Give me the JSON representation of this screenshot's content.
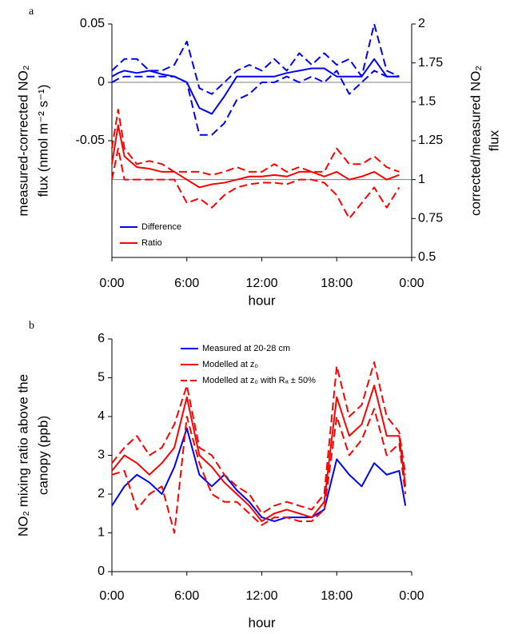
{
  "chart_data": [
    {
      "type": "line",
      "panel_label": "a",
      "xlabel": "hour",
      "ylabel": [
        "measured-corrected NO₂",
        "flux (nmol m⁻² s⁻¹)"
      ],
      "y2label": [
        "corrected/measured NO₂",
        "flux"
      ],
      "x": [
        0,
        0.5,
        1,
        2,
        3,
        4,
        5,
        6,
        7,
        8,
        9,
        10,
        11,
        12,
        13,
        14,
        15,
        16,
        17,
        18,
        19,
        20,
        21,
        22,
        23
      ],
      "xlim": [
        0,
        24
      ],
      "xticks": [
        {
          "value": 0,
          "label": "0:00"
        },
        {
          "value": 6,
          "label": "6:00"
        },
        {
          "value": 12,
          "label": "12:00"
        },
        {
          "value": 18,
          "label": "18:00"
        },
        {
          "value": 24,
          "label": "0:00"
        }
      ],
      "ylim": [
        -0.15,
        0.05
      ],
      "yticks": [
        -0.05,
        0,
        0.05
      ],
      "y2lim": [
        0.5,
        2
      ],
      "y2ticks": [
        0.5,
        0.75,
        1,
        1.25,
        1.5,
        1.75,
        2
      ],
      "hlines": [
        {
          "value": 0
        },
        {
          "value": 1,
          "axis": "y2"
        }
      ],
      "legend": "lower left",
      "series": [
        {
          "name": "Difference",
          "color": "#0000ff",
          "values": [
            0.005,
            0.008,
            0.01,
            0.008,
            0.01,
            0.007,
            0.005,
            0.0,
            -0.022,
            -0.027,
            -0.012,
            0.005,
            0.005,
            0.005,
            0.005,
            0.008,
            0.01,
            0.012,
            0.012,
            0.005,
            0.005,
            0.005,
            0.02,
            0.005,
            0.005
          ]
        },
        {
          "color": "#0000ff",
          "dashed": true,
          "values": [
            0.01,
            0.015,
            0.02,
            0.02,
            0.01,
            0.01,
            0.015,
            0.035,
            -0.005,
            -0.01,
            0,
            0.01,
            0.015,
            0.01,
            0.02,
            0.01,
            0.025,
            0.015,
            0.025,
            0.015,
            0.02,
            0.005,
            0.05,
            0.01,
            0.005
          ]
        },
        {
          "color": "#0000ff",
          "dashed": true,
          "values": [
            0,
            0.003,
            0.005,
            0.005,
            0.005,
            0.005,
            0.005,
            0,
            -0.045,
            -0.045,
            -0.035,
            -0.015,
            -0.01,
            0,
            0,
            0.005,
            0,
            0.005,
            0,
            0.01,
            -0.01,
            0,
            0.01,
            0.005,
            0.005
          ]
        },
        {
          "name": "Ratio",
          "color": "#ff0000",
          "axis": "y2",
          "values": [
            1.1,
            1.35,
            1.15,
            1.08,
            1.07,
            1.05,
            1.05,
            1.0,
            0.95,
            0.97,
            0.98,
            1.0,
            1.02,
            1.02,
            1.03,
            1.02,
            1.05,
            1.05,
            1.02,
            1.05,
            1.0,
            1.02,
            1.05,
            1.0,
            1.03
          ]
        },
        {
          "color": "#ff0000",
          "axis": "y2",
          "dashed": true,
          "values": [
            1.2,
            1.45,
            1.2,
            1.1,
            1.12,
            1.1,
            1.05,
            1.05,
            1.05,
            1.03,
            1.05,
            1.08,
            1.05,
            1.05,
            1.1,
            1.05,
            1.08,
            1.05,
            1.05,
            1.2,
            1.1,
            1.1,
            1.15,
            1.08,
            1.05
          ]
        },
        {
          "color": "#ff0000",
          "axis": "y2",
          "dashed": true,
          "values": [
            1.0,
            1.2,
            1.0,
            1.0,
            1.0,
            1.0,
            1.0,
            0.85,
            0.88,
            0.82,
            0.9,
            0.95,
            0.97,
            0.98,
            0.98,
            0.97,
            1.0,
            1.0,
            0.98,
            0.9,
            0.75,
            0.85,
            0.95,
            0.82,
            0.95
          ]
        }
      ]
    },
    {
      "type": "line",
      "panel_label": "b",
      "xlabel": "hour",
      "ylabel": [
        "NO₂ mixing ratio above the",
        "canopy (ppb)"
      ],
      "x": [
        0,
        1,
        2,
        3,
        4,
        5,
        6,
        7,
        8,
        9,
        10,
        11,
        12,
        13,
        14,
        15,
        16,
        17,
        18,
        19,
        20,
        21,
        22,
        23,
        23.5
      ],
      "xlim": [
        0,
        24
      ],
      "xticks": [
        {
          "value": 0,
          "label": "0:00"
        },
        {
          "value": 6,
          "label": "6:00"
        },
        {
          "value": 12,
          "label": "12:00"
        },
        {
          "value": 18,
          "label": "18:00"
        },
        {
          "value": 24,
          "label": "0:00"
        }
      ],
      "ylim": [
        0,
        6
      ],
      "yticks": [
        0,
        1,
        2,
        3,
        4,
        5,
        6
      ],
      "legend": "upper center",
      "series": [
        {
          "name": "Measured at 20-28 cm",
          "color": "#0000ff",
          "values": [
            1.7,
            2.2,
            2.5,
            2.3,
            2.0,
            2.7,
            3.7,
            2.5,
            2.2,
            2.5,
            2.1,
            1.8,
            1.4,
            1.3,
            1.4,
            1.4,
            1.4,
            1.6,
            2.9,
            2.5,
            2.2,
            2.8,
            2.5,
            2.6,
            1.7
          ]
        },
        {
          "name": "Modelled at z₀",
          "color": "#ff0000",
          "values": [
            2.6,
            3.0,
            2.8,
            2.5,
            2.8,
            3.2,
            4.5,
            3.0,
            2.7,
            2.3,
            2.0,
            1.7,
            1.3,
            1.5,
            1.6,
            1.5,
            1.4,
            1.8,
            4.5,
            3.5,
            3.8,
            4.8,
            3.5,
            3.5,
            2.2
          ]
        },
        {
          "name": "Modelled at z₀ with Rₐ ± 50%",
          "color": "#ff0000",
          "dashed": true,
          "values": [
            2.8,
            3.2,
            3.5,
            3.0,
            3.2,
            3.8,
            4.8,
            3.2,
            3.0,
            2.5,
            2.2,
            2.0,
            1.5,
            1.7,
            1.8,
            1.7,
            1.6,
            2.0,
            5.3,
            4.0,
            4.3,
            5.4,
            4.0,
            3.6,
            2.5
          ]
        },
        {
          "color": "#ff0000",
          "dashed": true,
          "values": [
            2.5,
            2.6,
            1.6,
            2.0,
            2.2,
            1.0,
            4.0,
            2.8,
            2.0,
            1.8,
            1.8,
            1.5,
            1.2,
            1.4,
            1.4,
            1.3,
            1.3,
            1.6,
            4.0,
            3.0,
            3.4,
            4.2,
            3.0,
            3.3,
            2.0
          ]
        }
      ]
    }
  ]
}
